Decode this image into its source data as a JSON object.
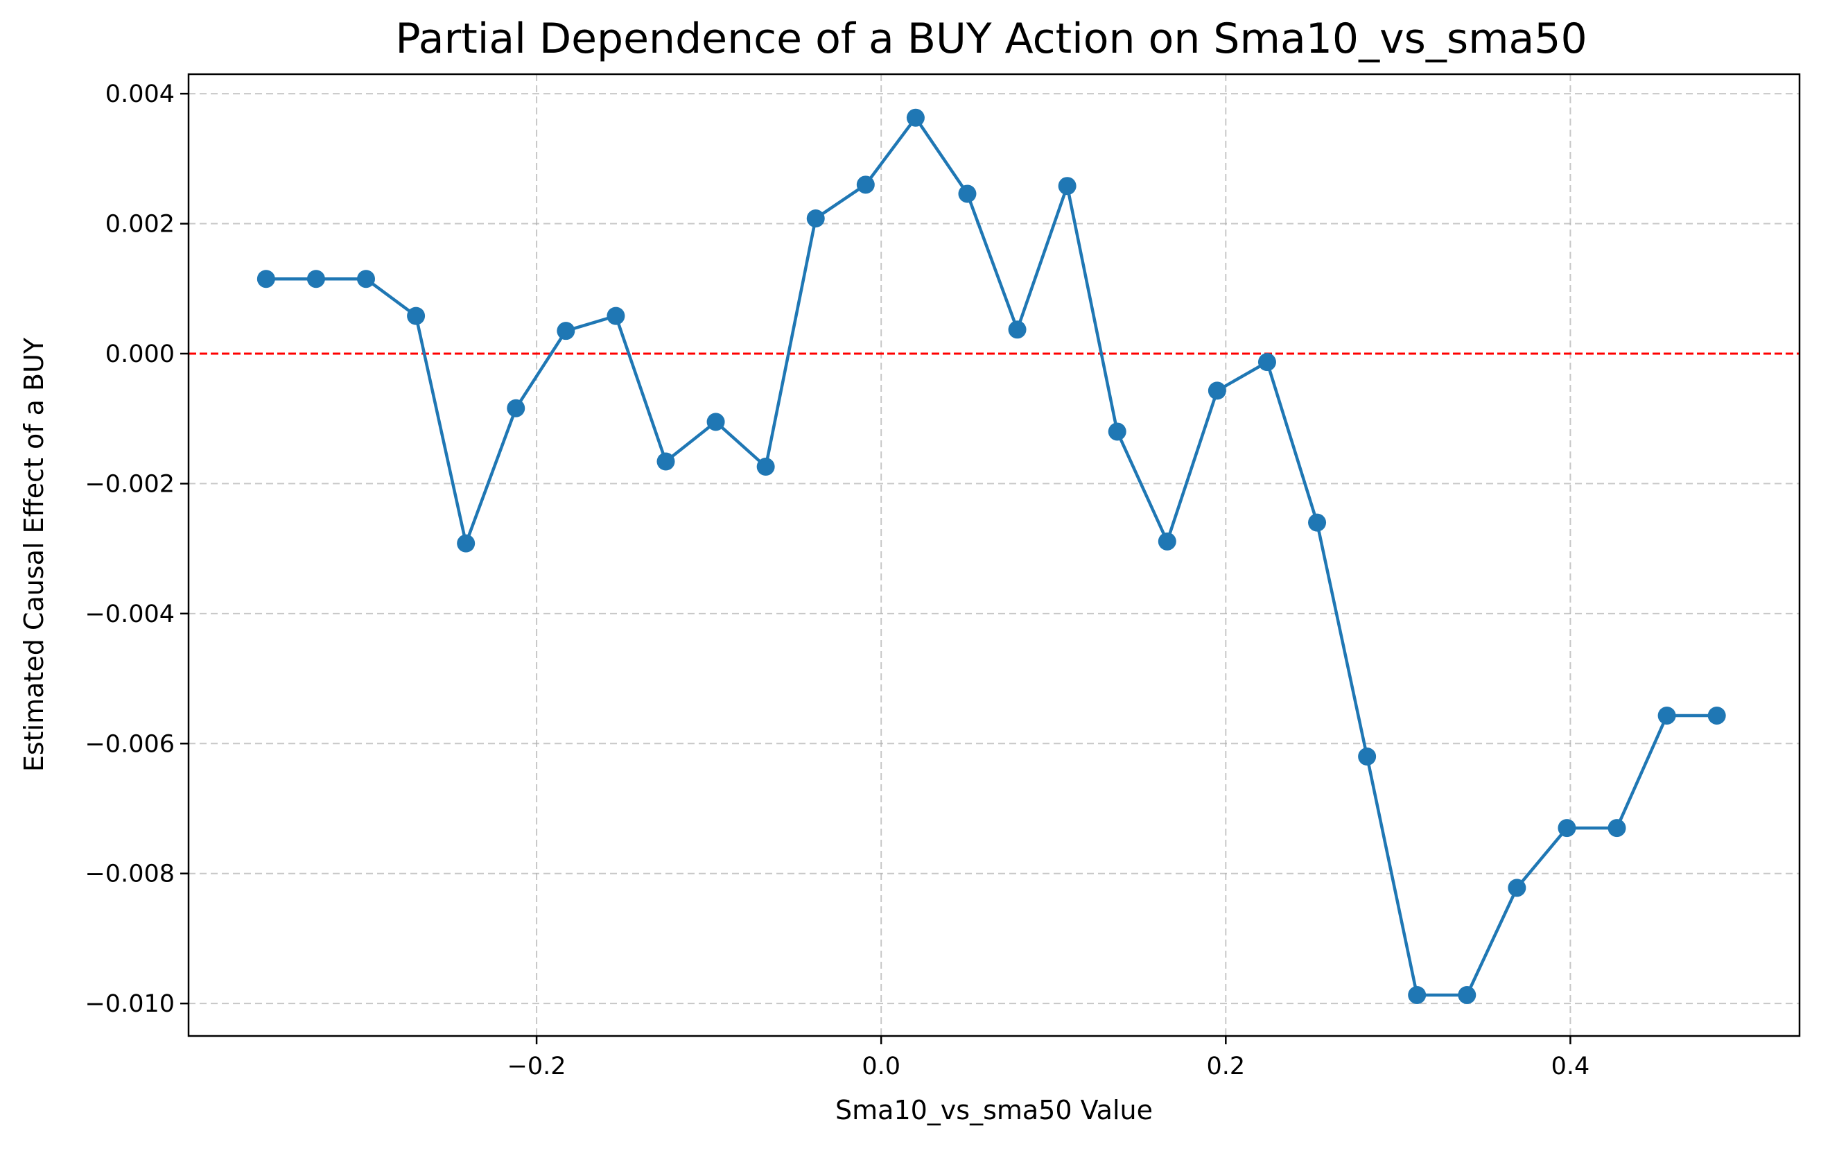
{
  "chart_data": {
    "type": "line",
    "title": "Partial Dependence of a BUY Action on Sma10_vs_sma50",
    "xlabel": "Sma10_vs_sma50 Value",
    "ylabel": "Estimated Causal Effect of a BUY",
    "xlim": [
      -0.402,
      0.533
    ],
    "ylim": [
      -0.0105,
      0.0043
    ],
    "x_ticks": [
      -0.2,
      0.0,
      0.2,
      0.4
    ],
    "x_tick_labels": [
      "−0.2",
      "0.0",
      "0.2",
      "0.4"
    ],
    "y_ticks": [
      0.004,
      0.002,
      0.0,
      -0.002,
      -0.004,
      -0.006,
      -0.008,
      -0.01
    ],
    "y_tick_labels": [
      "0.004",
      "0.002",
      "0.000",
      "−0.002",
      "−0.004",
      "−0.006",
      "−0.008",
      "−0.010"
    ],
    "grid": true,
    "reference_line": {
      "y": 0.0,
      "style": "dashed",
      "color": "#ff0000"
    },
    "series": [
      {
        "color": "#1f77b4",
        "marker": "circle",
        "x": [
          -0.357,
          -0.328,
          -0.299,
          -0.27,
          -0.241,
          -0.212,
          -0.183,
          -0.154,
          -0.125,
          -0.096,
          -0.067,
          -0.038,
          -0.009,
          0.02,
          0.05,
          0.079,
          0.108,
          0.137,
          0.166,
          0.195,
          0.224,
          0.253,
          0.282,
          0.311,
          0.34,
          0.369,
          0.398,
          0.427,
          0.456,
          0.485
        ],
        "y": [
          0.00115,
          0.00115,
          0.00115,
          0.00058,
          -0.00292,
          -0.00084,
          0.00035,
          0.00058,
          -0.00166,
          -0.00105,
          -0.00174,
          0.00208,
          0.0026,
          0.00363,
          0.00246,
          0.00037,
          0.00258,
          -0.0012,
          -0.00289,
          -0.00057,
          -0.00013,
          -0.0026,
          -0.0062,
          -0.00987,
          -0.00987,
          -0.00822,
          -0.0073,
          -0.0073,
          -0.00557,
          -0.00557
        ]
      }
    ]
  }
}
